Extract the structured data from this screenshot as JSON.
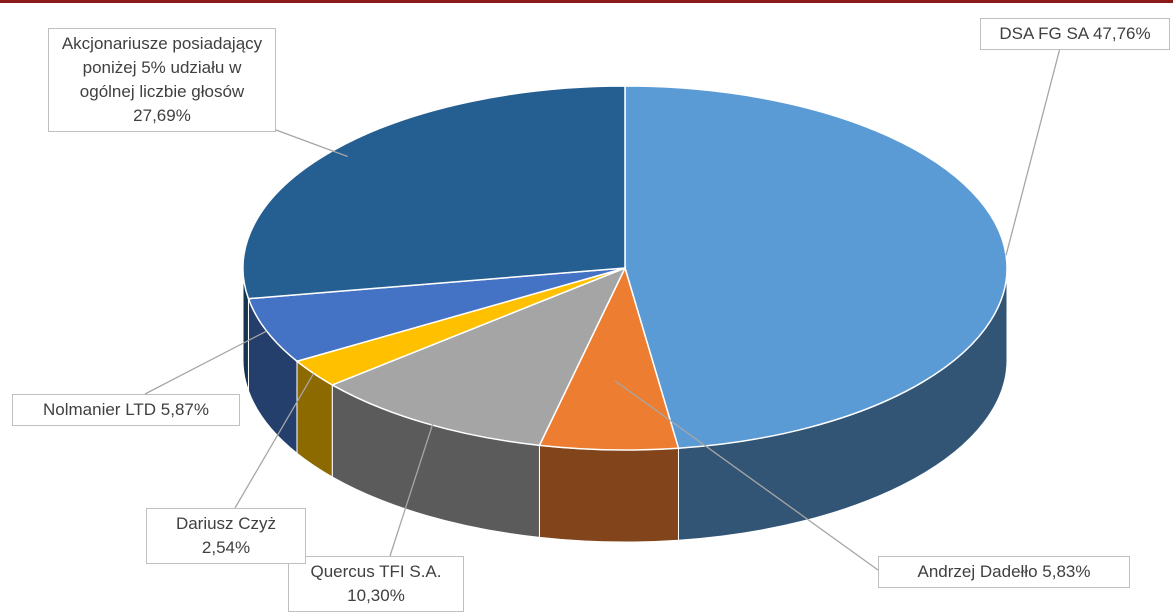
{
  "chart_data": {
    "type": "pie3d",
    "categories": [
      "DSA FG SA",
      "Andrzej Dadełło",
      "Quercus TFI S.A.",
      "Dariusz Czyż",
      "Nolmanier LTD",
      "Akcjonariusze posiadający poniżej 5% udziału w ogólnej liczbie głosów"
    ],
    "values": [
      47.76,
      5.83,
      10.3,
      2.54,
      5.87,
      27.69
    ],
    "value_labels": [
      "47,76%",
      "5,83%",
      "10,30%",
      "2,54%",
      "5,87%",
      "27,69%"
    ],
    "colors": [
      "#5b9bd5",
      "#ed7d31",
      "#a5a5a5",
      "#ffc000",
      "#4472c4",
      "#255e91"
    ]
  }
}
